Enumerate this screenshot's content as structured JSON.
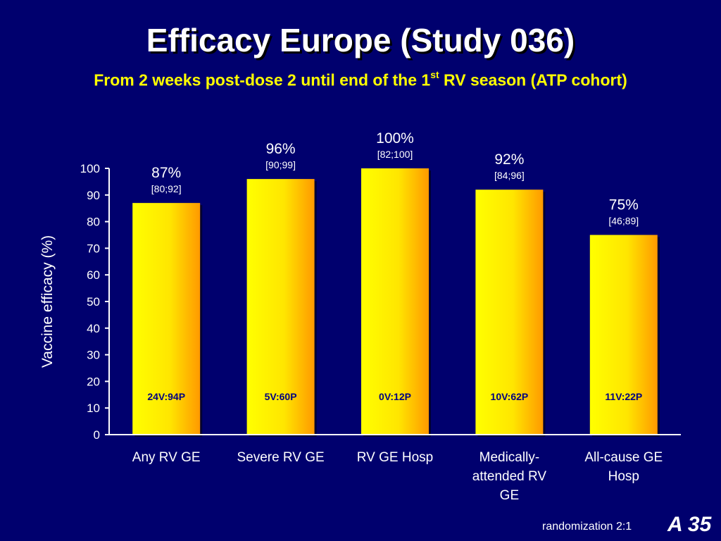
{
  "slide": {
    "title": "Efficacy Europe (Study 036)",
    "subtitle_before": "From 2 weeks post-dose 2 until end of the 1",
    "subtitle_sup": "st",
    "subtitle_after": " RV season (ATP cohort)",
    "footer_note": "randomization 2:1",
    "slide_number": "A 35"
  },
  "chart_data": {
    "type": "bar",
    "ylabel": "Vaccine efficacy (%)",
    "xlabel": "",
    "ylim": [
      0,
      100
    ],
    "yticks": [
      0,
      10,
      20,
      30,
      40,
      50,
      60,
      70,
      80,
      90,
      100
    ],
    "grid": false,
    "categories": [
      [
        "Any RV GE"
      ],
      [
        "Severe RV GE"
      ],
      [
        "RV GE Hosp"
      ],
      [
        "Medically-",
        "attended RV",
        "GE"
      ],
      [
        "All-cause GE",
        "Hosp"
      ]
    ],
    "values": [
      87,
      96,
      100,
      92,
      75
    ],
    "value_labels": [
      "87%",
      "96%",
      "100%",
      "92%",
      "75%"
    ],
    "ci_labels": [
      "[80;92]",
      "[90;99]",
      "[82;100]",
      "[84;96]",
      "[46;89]"
    ],
    "case_counts": [
      "24V:94P",
      "5V:60P",
      "0V:12P",
      "10V:62P",
      "11V:22P"
    ],
    "colors": {
      "bar_light": "#ffff00",
      "bar_dark": "#ff9900",
      "axis": "#ffffff",
      "case_text": "#000080"
    }
  }
}
